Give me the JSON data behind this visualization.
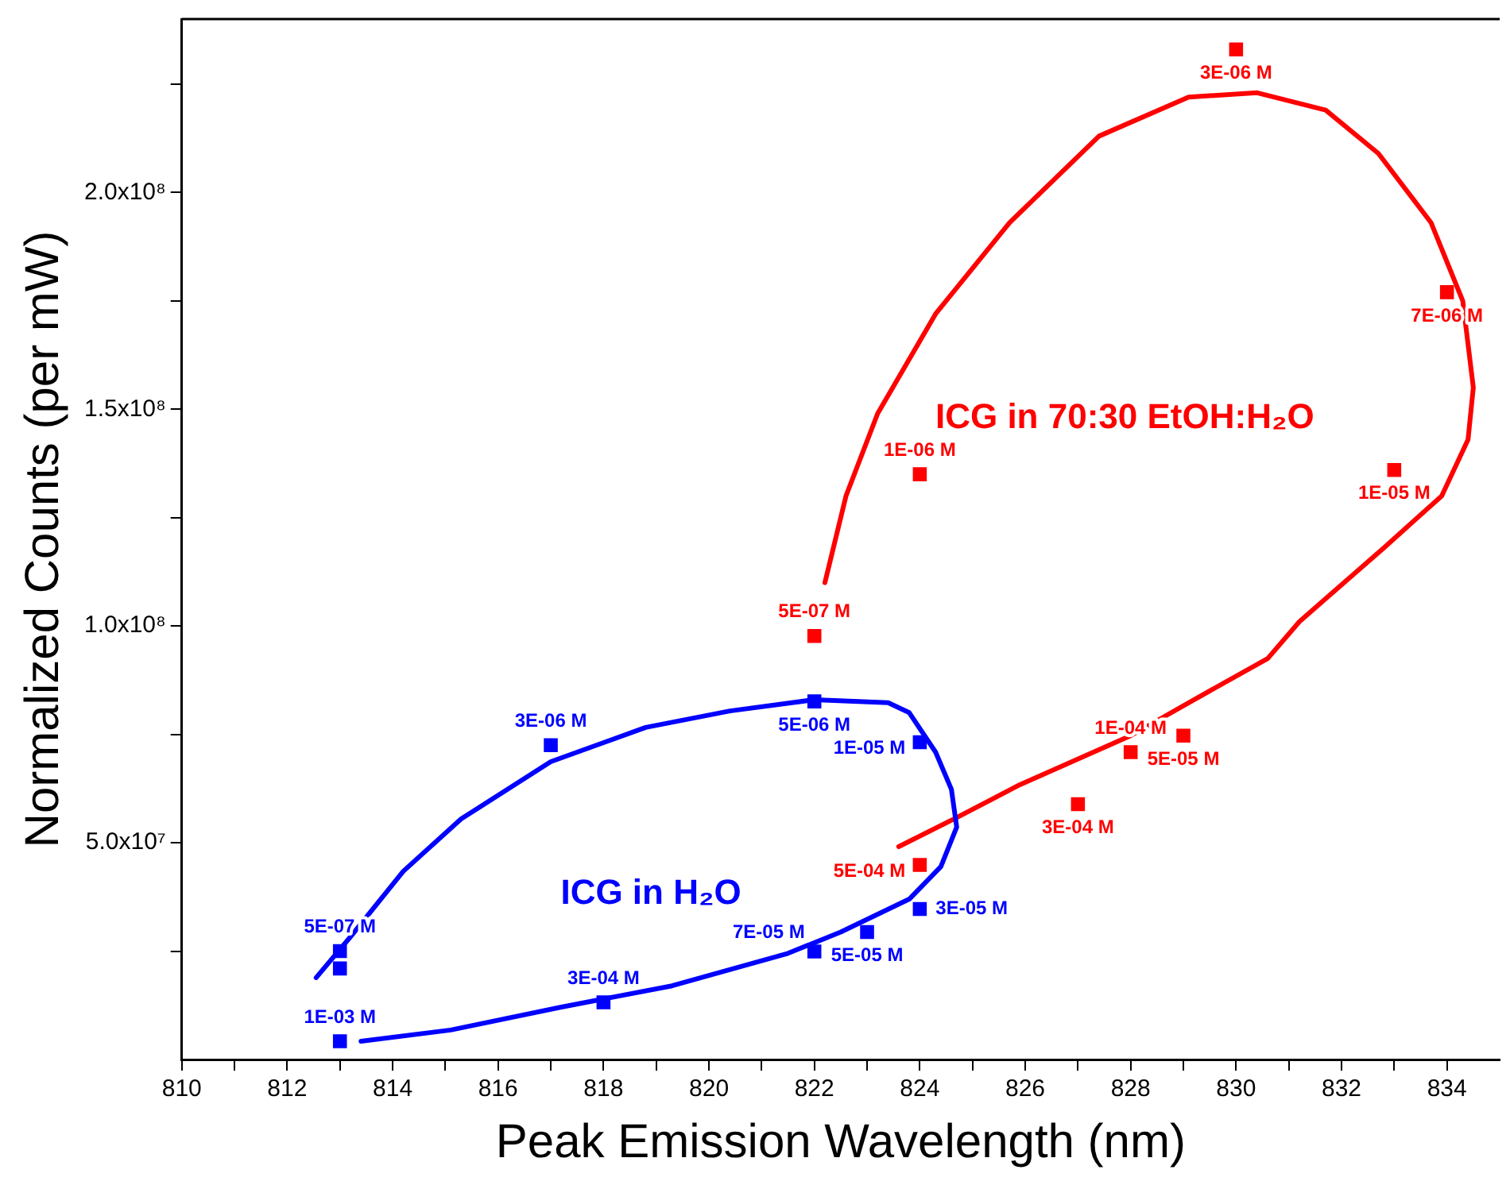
{
  "chart_data": {
    "type": "scatter",
    "xlabel": "Peak Emission Wavelength (nm)",
    "ylabel": "Normalized Counts (per mW)",
    "xlim": [
      810,
      835
    ],
    "ylim": [
      0,
      240000000
    ],
    "xticks": [
      810,
      {
        "value": 811,
        "label": null
      },
      812,
      {
        "value": 813,
        "label": null
      },
      814,
      {
        "value": 815,
        "label": null
      },
      816,
      {
        "value": 817,
        "label": null
      },
      818,
      {
        "value": 819,
        "label": null
      },
      820,
      {
        "value": 821,
        "label": null
      },
      822,
      {
        "value": 823,
        "label": null
      },
      824,
      {
        "value": 825,
        "label": null
      },
      826,
      {
        "value": 827,
        "label": null
      },
      828,
      {
        "value": 829,
        "label": null
      },
      830,
      {
        "value": 831,
        "label": null
      },
      832,
      {
        "value": 833,
        "label": null
      },
      834
    ],
    "yticks": [
      {
        "value": 25000000,
        "label": null
      },
      {
        "value": 50000000,
        "label": "5.0x10⁷"
      },
      {
        "value": 75000000,
        "label": null
      },
      {
        "value": 100000000,
        "label": "1.0x10⁸"
      },
      {
        "value": 125000000,
        "label": null
      },
      {
        "value": 150000000,
        "label": "1.5x10⁸"
      },
      {
        "value": 175000000,
        "label": null
      },
      {
        "value": 200000000,
        "label": "2.0x10⁸"
      },
      {
        "value": 225000000,
        "label": null
      }
    ],
    "marker": "square",
    "grid": false,
    "legend": false,
    "series": [
      {
        "name": "ICG in H₂O",
        "color": "#0000ff",
        "x": [
          813,
          813,
          813,
          817,
          818,
          822,
          822,
          823,
          824,
          824
        ],
        "values": [
          4200000,
          21000000,
          25000000,
          72500000,
          13200000,
          82600000,
          24900000,
          29400000,
          73200000,
          34700000
        ],
        "value_labels": [
          "1E-03 M",
          null,
          "5E-07 M",
          "3E-06 M",
          "3E-04 M",
          "5E-06 M",
          "7E-05 M",
          "5E-05 M",
          "1E-05 M",
          "3E-05 M"
        ]
      },
      {
        "name": "ICG in 70:30 EtOH:H₂O",
        "color": "#ff0000",
        "x": [
          822,
          824,
          830,
          834,
          833,
          829,
          828,
          827,
          824
        ],
        "values": [
          97700000,
          135000000,
          233000000,
          177000000,
          136000000,
          74700000,
          70900000,
          58900000,
          44900000
        ],
        "value_labels": [
          "5E-07 M",
          "1E-06 M",
          "3E-06 M",
          "7E-06 M",
          "1E-05 M",
          "5E-05 M",
          "1E-04 M",
          "3E-04 M",
          "5E-04 M"
        ]
      },
      {
        "type": "line",
        "color": "#0000ff",
        "marker": "none",
        "x": [
          812.55,
          813.2,
          814.2,
          815.3,
          817.0,
          818.8,
          820.4,
          822.0,
          823.4,
          823.8,
          824.3,
          824.6,
          824.7,
          824.4,
          823.8,
          822.5,
          821.5,
          819.3,
          817.2,
          815.1,
          813.4
        ],
        "values": [
          18900000,
          28300000,
          43400000,
          55500000,
          68700000,
          76600000,
          80400000,
          83000000,
          82300000,
          80000000,
          70900000,
          62300000,
          53600000,
          44500000,
          37000000,
          29400000,
          24500000,
          17000000,
          12100000,
          6800000,
          4200000
        ]
      },
      {
        "type": "line",
        "color": "#ff0000",
        "marker": "none",
        "x": [
          822.2,
          822.6,
          823.2,
          824.3,
          825.7,
          827.4,
          829.1,
          830.4,
          831.7,
          832.7,
          833.7,
          834.3,
          834.5,
          834.4,
          833.9,
          832.8,
          831.2,
          830.6,
          829.1,
          828.0,
          825.9,
          824.7,
          823.6
        ],
        "values": [
          110000000,
          130000000,
          149000000,
          172000000,
          193000000,
          213000000,
          222000000,
          223000000,
          219000000,
          209000000,
          193000000,
          175000000,
          155000000,
          143000000,
          130000000,
          118000000,
          101000000,
          92500000,
          82300000,
          74700000,
          63400000,
          55800000,
          49100000
        ]
      }
    ]
  }
}
